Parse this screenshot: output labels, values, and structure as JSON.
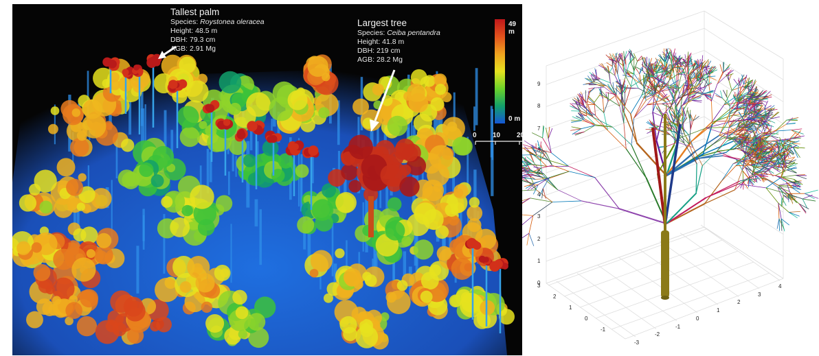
{
  "lidar_scene": {
    "tallest_palm": {
      "heading": "Tallest palm",
      "species_label": "Species:",
      "species_name": "Roystonea oleracea",
      "height": "Height: 48.5 m",
      "dbh": "DBH: 79.3 cm",
      "agb": "AGB: 2.91 Mg"
    },
    "largest_tree": {
      "heading": "Largest tree",
      "species_label": "Species:",
      "species_name": "Ceiba pentandra",
      "height": "Height: 41.8 m",
      "dbh": "DBH: 219 cm",
      "agb": "AGB: 28.2 Mg"
    },
    "colorbar": {
      "max_label": "49 m",
      "min_label": "0 m",
      "colors": [
        "#c0171a",
        "#e2521d",
        "#f0a31f",
        "#e6e21f",
        "#6bd22a",
        "#12a06a",
        "#1556d6"
      ]
    },
    "scale_bar": {
      "labels": [
        "0",
        "10",
        "20"
      ]
    }
  },
  "tree_model": {
    "z_ticks": [
      "0",
      "1",
      "2",
      "3",
      "4",
      "5",
      "6",
      "7",
      "8",
      "9"
    ],
    "x_ticks": [
      "-3",
      "-2",
      "-1",
      "0",
      "1",
      "2",
      "3",
      "4"
    ],
    "y_ticks": [
      "-1",
      "0",
      "1",
      "2",
      "3"
    ],
    "trunk_color": "#8b7a18"
  }
}
